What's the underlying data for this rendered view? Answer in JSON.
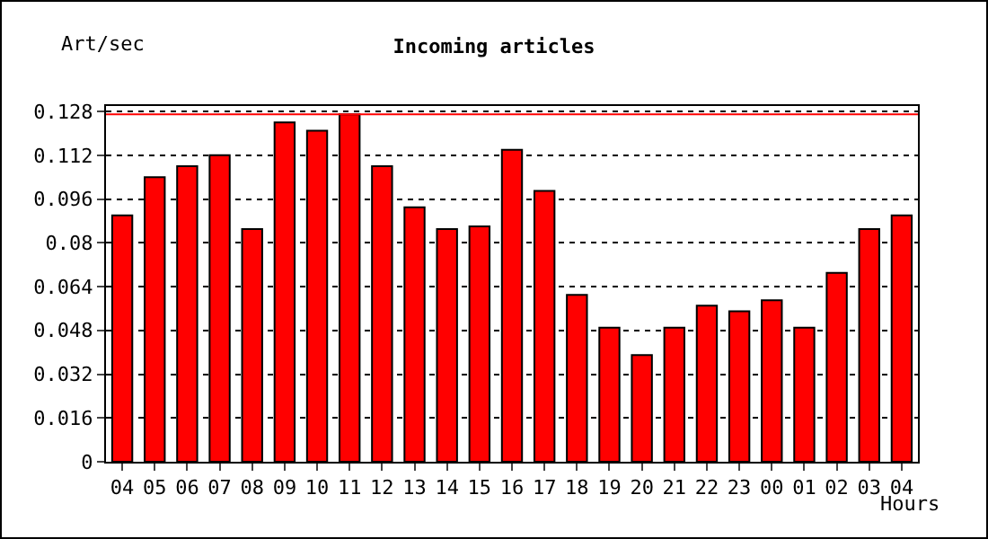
{
  "chart_data": {
    "type": "bar",
    "title": "Incoming articles",
    "xlabel": "Hours",
    "ylabel": "Art/sec",
    "categories": [
      "04",
      "05",
      "06",
      "07",
      "08",
      "09",
      "10",
      "11",
      "12",
      "13",
      "14",
      "15",
      "16",
      "17",
      "18",
      "19",
      "20",
      "21",
      "22",
      "23",
      "00",
      "01",
      "02",
      "03",
      "04"
    ],
    "values": [
      0.09,
      0.104,
      0.108,
      0.112,
      0.085,
      0.124,
      0.121,
      0.127,
      0.108,
      0.093,
      0.085,
      0.086,
      0.114,
      0.099,
      0.061,
      0.049,
      0.039,
      0.049,
      0.057,
      0.055,
      0.059,
      0.049,
      0.069,
      0.085,
      0.09
    ],
    "color": "#ff0000",
    "ylim": [
      0,
      0.13
    ],
    "yticks": [
      0,
      0.016,
      0.032,
      0.048,
      0.064,
      0.08,
      0.096,
      0.112,
      0.128
    ],
    "grid": "y",
    "ref_lines": [
      {
        "axis": "y",
        "value": 0.127,
        "color": "#ff0000"
      }
    ]
  }
}
